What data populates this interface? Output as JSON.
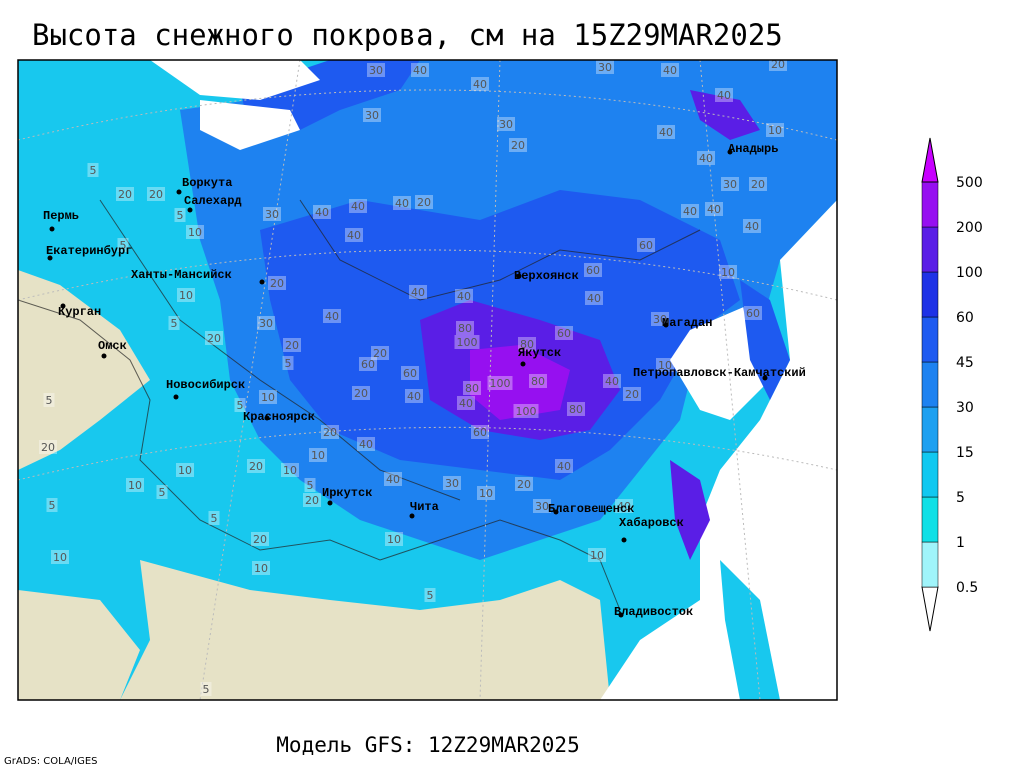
{
  "title": "Высота снежного покрова, см на 15Z29MAR2025",
  "footer": "Модель GFS: 12Z29MAR2025",
  "credits": "GrADS: COLA/IGES",
  "legend": {
    "levels": [
      0.5,
      1,
      5,
      15,
      30,
      45,
      60,
      100,
      200,
      500
    ],
    "colors": [
      "#ffffff",
      "#a0f4fa",
      "#10e0e6",
      "#10c8f0",
      "#1ea0f0",
      "#1e82f0",
      "#1e5af0",
      "#1e32e6",
      "#5a1ee6",
      "#9610f0",
      "#c800ff"
    ]
  },
  "cities": [
    {
      "name": "Воркута"
    },
    {
      "name": "Салехард"
    },
    {
      "name": "Пермь"
    },
    {
      "name": "Екатеринбург"
    },
    {
      "name": "Ханты-Мансийск"
    },
    {
      "name": "Курган"
    },
    {
      "name": "Омск"
    },
    {
      "name": "Новосибирск"
    },
    {
      "name": "Красноярск"
    },
    {
      "name": "Иркутск"
    },
    {
      "name": "Чита"
    },
    {
      "name": "Верхоянск"
    },
    {
      "name": "Якутск"
    },
    {
      "name": "Магадан"
    },
    {
      "name": "Петропавловск-Камчатский"
    },
    {
      "name": "Анадырь"
    },
    {
      "name": "Благовещенск"
    },
    {
      "name": "Хабаровск"
    },
    {
      "name": "Владивосток"
    }
  ],
  "contour_labels": [
    30,
    40,
    40,
    30,
    40,
    20,
    40,
    10,
    40,
    30,
    30,
    20,
    40,
    30,
    20,
    5,
    20,
    20,
    5,
    10,
    30,
    40,
    40,
    40,
    20,
    40,
    40,
    40,
    40,
    60,
    10,
    60,
    5,
    20,
    10,
    40,
    40,
    40,
    40,
    5,
    30,
    30,
    60,
    80,
    100,
    80,
    60,
    20,
    20,
    20,
    5,
    60,
    60,
    10,
    100,
    80,
    80,
    40,
    5,
    5,
    10,
    20,
    40,
    40,
    100,
    80,
    20,
    20,
    40,
    60,
    20,
    20,
    10,
    10,
    40,
    30,
    10,
    20,
    40,
    10,
    10,
    5,
    5,
    20,
    30,
    40,
    5,
    20,
    10,
    10,
    10,
    10,
    5,
    5,
    5
  ]
}
